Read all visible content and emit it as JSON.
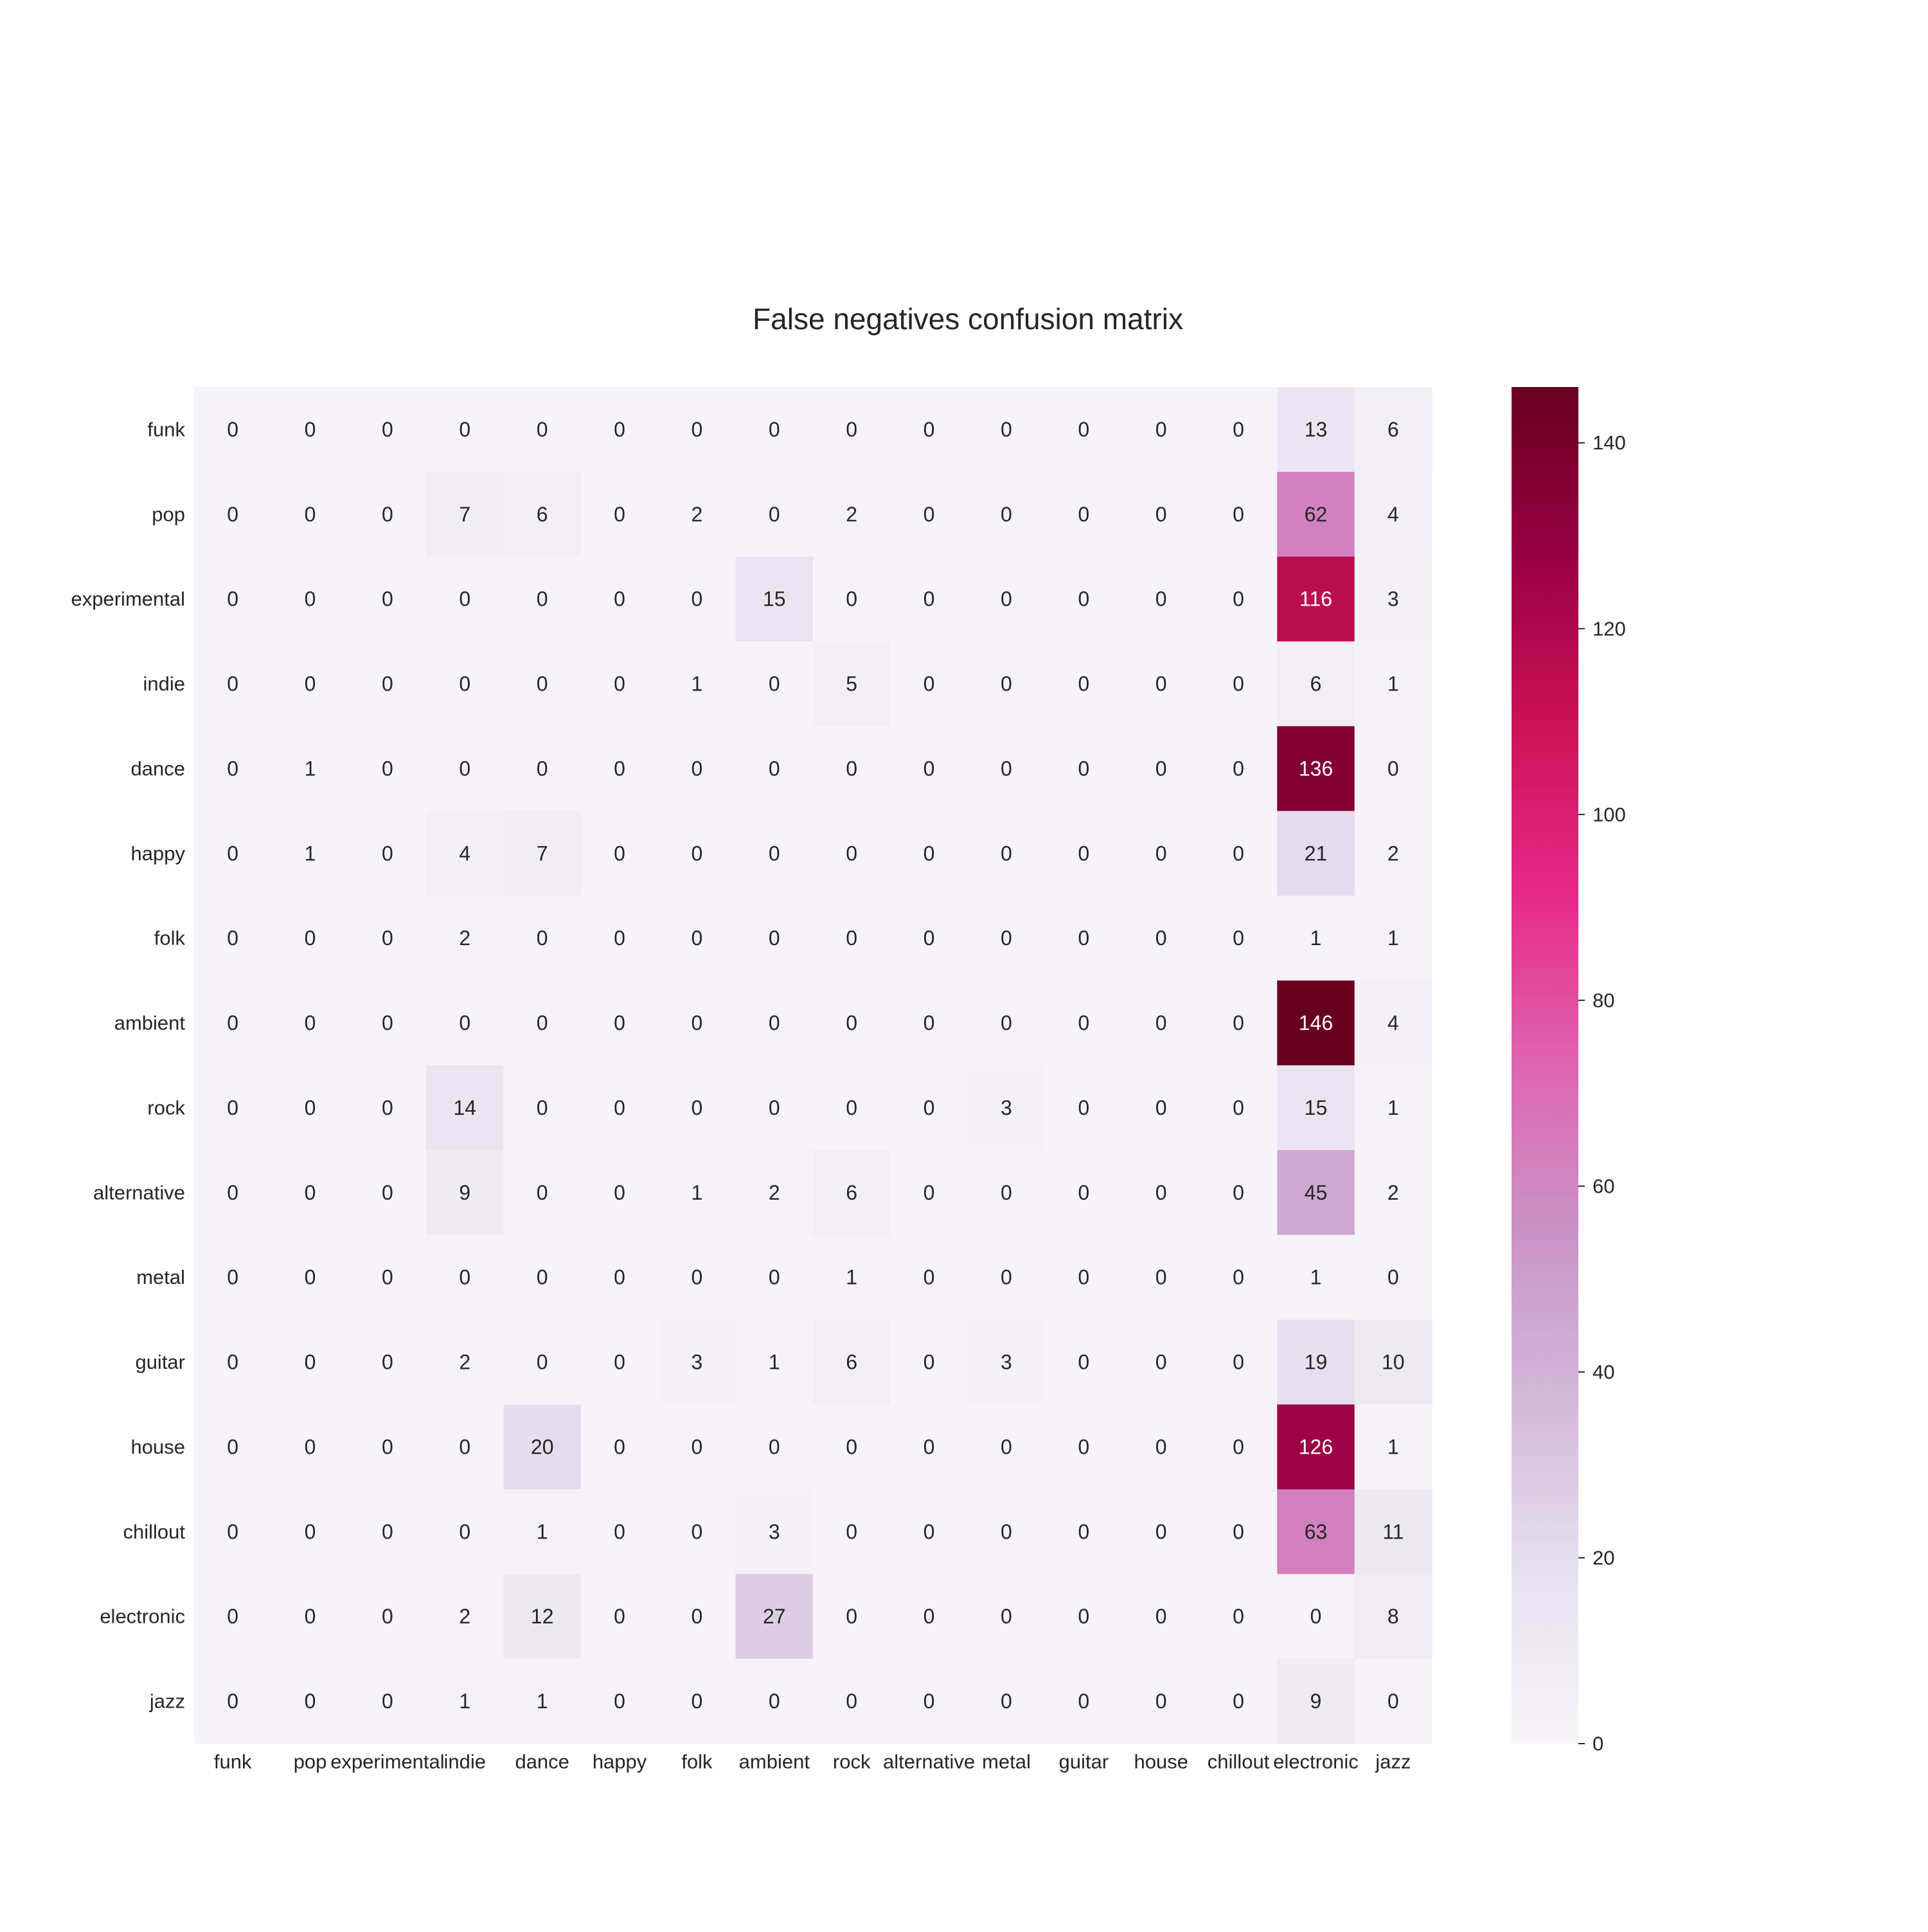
{
  "chart_data": {
    "type": "heatmap",
    "title": "False negatives confusion matrix",
    "xlabel": "",
    "ylabel": "",
    "x_categories": [
      "funk",
      "pop",
      "experimental",
      "indie",
      "dance",
      "happy",
      "folk",
      "ambient",
      "rock",
      "alternative",
      "metal",
      "guitar",
      "house",
      "chillout",
      "electronic",
      "jazz"
    ],
    "y_categories": [
      "funk",
      "pop",
      "experimental",
      "indie",
      "dance",
      "happy",
      "folk",
      "ambient",
      "rock",
      "alternative",
      "metal",
      "guitar",
      "house",
      "chillout",
      "electronic",
      "jazz"
    ],
    "values": [
      [
        0,
        0,
        0,
        0,
        0,
        0,
        0,
        0,
        0,
        0,
        0,
        0,
        0,
        0,
        13,
        6
      ],
      [
        0,
        0,
        0,
        7,
        6,
        0,
        2,
        0,
        2,
        0,
        0,
        0,
        0,
        0,
        62,
        4
      ],
      [
        0,
        0,
        0,
        0,
        0,
        0,
        0,
        15,
        0,
        0,
        0,
        0,
        0,
        0,
        116,
        3
      ],
      [
        0,
        0,
        0,
        0,
        0,
        0,
        1,
        0,
        5,
        0,
        0,
        0,
        0,
        0,
        6,
        1
      ],
      [
        0,
        1,
        0,
        0,
        0,
        0,
        0,
        0,
        0,
        0,
        0,
        0,
        0,
        0,
        136,
        0
      ],
      [
        0,
        1,
        0,
        4,
        7,
        0,
        0,
        0,
        0,
        0,
        0,
        0,
        0,
        0,
        21,
        2
      ],
      [
        0,
        0,
        0,
        2,
        0,
        0,
        0,
        0,
        0,
        0,
        0,
        0,
        0,
        0,
        1,
        1
      ],
      [
        0,
        0,
        0,
        0,
        0,
        0,
        0,
        0,
        0,
        0,
        0,
        0,
        0,
        0,
        146,
        4
      ],
      [
        0,
        0,
        0,
        14,
        0,
        0,
        0,
        0,
        0,
        0,
        3,
        0,
        0,
        0,
        15,
        1
      ],
      [
        0,
        0,
        0,
        9,
        0,
        0,
        1,
        2,
        6,
        0,
        0,
        0,
        0,
        0,
        45,
        2
      ],
      [
        0,
        0,
        0,
        0,
        0,
        0,
        0,
        0,
        1,
        0,
        0,
        0,
        0,
        0,
        1,
        0
      ],
      [
        0,
        0,
        0,
        2,
        0,
        0,
        3,
        1,
        6,
        0,
        3,
        0,
        0,
        0,
        19,
        10
      ],
      [
        0,
        0,
        0,
        0,
        20,
        0,
        0,
        0,
        0,
        0,
        0,
        0,
        0,
        0,
        126,
        1
      ],
      [
        0,
        0,
        0,
        0,
        1,
        0,
        0,
        3,
        0,
        0,
        0,
        0,
        0,
        0,
        63,
        11
      ],
      [
        0,
        0,
        0,
        2,
        12,
        0,
        0,
        27,
        0,
        0,
        0,
        0,
        0,
        0,
        0,
        8
      ],
      [
        0,
        0,
        0,
        1,
        1,
        0,
        0,
        0,
        0,
        0,
        0,
        0,
        0,
        0,
        9,
        0
      ]
    ],
    "colorbar": {
      "min": 0,
      "max": 146,
      "ticks": [
        0,
        20,
        40,
        60,
        80,
        100,
        120,
        140
      ]
    },
    "colormap": "PuRd",
    "colormap_stops": [
      "#f7f4f9",
      "#e7e1ef",
      "#d4b9da",
      "#c994c7",
      "#df65b0",
      "#e7298a",
      "#ce1256",
      "#980043",
      "#67001f"
    ],
    "text_color_dark": "#262626",
    "text_color_light": "#ffffff",
    "grid": false
  }
}
